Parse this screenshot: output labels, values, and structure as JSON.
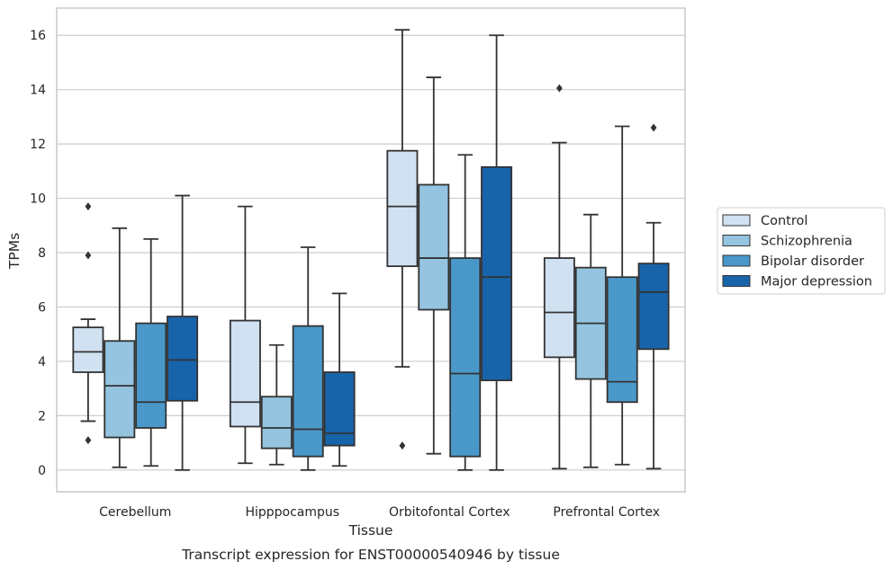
{
  "caption": "Transcript expression for ENST00000540946 by tissue",
  "chart_data": {
    "type": "boxplot",
    "xlabel": "Tissue",
    "ylabel": "TPMs",
    "ylim": [
      -0.8,
      17
    ],
    "yticks": [
      0,
      2,
      4,
      6,
      8,
      10,
      12,
      14,
      16
    ],
    "grid": "horizontal",
    "legend_position": "right",
    "categories": [
      "Cerebellum",
      "Hipppocampus",
      "Orbitofontal Cortex",
      "Prefrontal Cortex"
    ],
    "series": [
      {
        "name": "Control",
        "color": "#d0e1f2",
        "boxes": [
          {
            "whisker_low": 1.8,
            "q1": 3.6,
            "median": 4.35,
            "q3": 5.25,
            "whisker_high": 5.55,
            "outliers": [
              9.7,
              7.9,
              1.1
            ]
          },
          {
            "whisker_low": 0.25,
            "q1": 1.6,
            "median": 2.5,
            "q3": 5.5,
            "whisker_high": 9.7,
            "outliers": []
          },
          {
            "whisker_low": 3.8,
            "q1": 7.5,
            "median": 9.7,
            "q3": 11.75,
            "whisker_high": 16.2,
            "outliers": [
              0.9
            ]
          },
          {
            "whisker_low": 0.05,
            "q1": 4.15,
            "median": 5.8,
            "q3": 7.8,
            "whisker_high": 12.05,
            "outliers": [
              14.05
            ]
          }
        ]
      },
      {
        "name": "Schizophrenia",
        "color": "#94c4df",
        "boxes": [
          {
            "whisker_low": 0.1,
            "q1": 1.2,
            "median": 3.1,
            "q3": 4.75,
            "whisker_high": 8.9,
            "outliers": []
          },
          {
            "whisker_low": 0.2,
            "q1": 0.8,
            "median": 1.55,
            "q3": 2.7,
            "whisker_high": 4.6,
            "outliers": []
          },
          {
            "whisker_low": 0.6,
            "q1": 5.9,
            "median": 7.8,
            "q3": 10.5,
            "whisker_high": 14.45,
            "outliers": []
          },
          {
            "whisker_low": 0.1,
            "q1": 3.35,
            "median": 5.4,
            "q3": 7.45,
            "whisker_high": 9.4,
            "outliers": []
          }
        ]
      },
      {
        "name": "Bipolar disorder",
        "color": "#4a98c9",
        "boxes": [
          {
            "whisker_low": 0.15,
            "q1": 1.55,
            "median": 2.5,
            "q3": 5.4,
            "whisker_high": 8.5,
            "outliers": []
          },
          {
            "whisker_low": 0.0,
            "q1": 0.5,
            "median": 1.5,
            "q3": 5.3,
            "whisker_high": 8.2,
            "outliers": []
          },
          {
            "whisker_low": 0.0,
            "q1": 0.5,
            "median": 3.55,
            "q3": 7.8,
            "whisker_high": 11.6,
            "outliers": []
          },
          {
            "whisker_low": 0.2,
            "q1": 2.5,
            "median": 3.25,
            "q3": 7.1,
            "whisker_high": 12.65,
            "outliers": []
          }
        ]
      },
      {
        "name": "Major depression",
        "color": "#1764ab",
        "boxes": [
          {
            "whisker_low": 0.0,
            "q1": 2.55,
            "median": 4.05,
            "q3": 5.65,
            "whisker_high": 10.1,
            "outliers": []
          },
          {
            "whisker_low": 0.15,
            "q1": 0.9,
            "median": 1.35,
            "q3": 3.6,
            "whisker_high": 6.5,
            "outliers": []
          },
          {
            "whisker_low": 0.0,
            "q1": 3.3,
            "median": 7.1,
            "q3": 11.15,
            "whisker_high": 16.0,
            "outliers": []
          },
          {
            "whisker_low": 0.05,
            "q1": 4.45,
            "median": 6.55,
            "q3": 7.6,
            "whisker_high": 9.1,
            "outliers": [
              12.6
            ]
          }
        ]
      }
    ]
  }
}
